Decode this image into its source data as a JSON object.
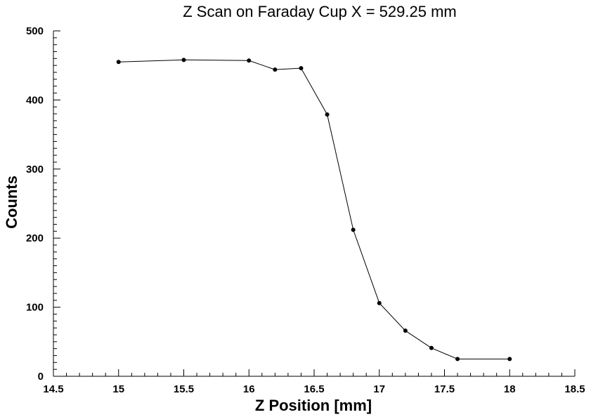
{
  "chart_data": {
    "type": "line",
    "title": "Z Scan on Faraday Cup X = 529.25 mm",
    "xlabel": "Z Position [mm]",
    "ylabel": "Counts",
    "xlim": [
      14.5,
      18.5
    ],
    "ylim": [
      0,
      500
    ],
    "x_ticks": [
      "14.5",
      "15",
      "15.5",
      "16",
      "16.5",
      "17",
      "17.5",
      "18",
      "18.5"
    ],
    "y_ticks": [
      "0",
      "100",
      "200",
      "300",
      "400",
      "500"
    ],
    "grid": false,
    "series": [
      {
        "x": [
          15.0,
          15.5,
          16.0,
          16.2,
          16.4,
          16.6,
          16.8,
          17.0,
          17.2,
          17.4,
          17.6,
          18.0
        ],
        "y": [
          455,
          458,
          457,
          444,
          446,
          379,
          212,
          106,
          66,
          41,
          25,
          25
        ]
      }
    ]
  }
}
